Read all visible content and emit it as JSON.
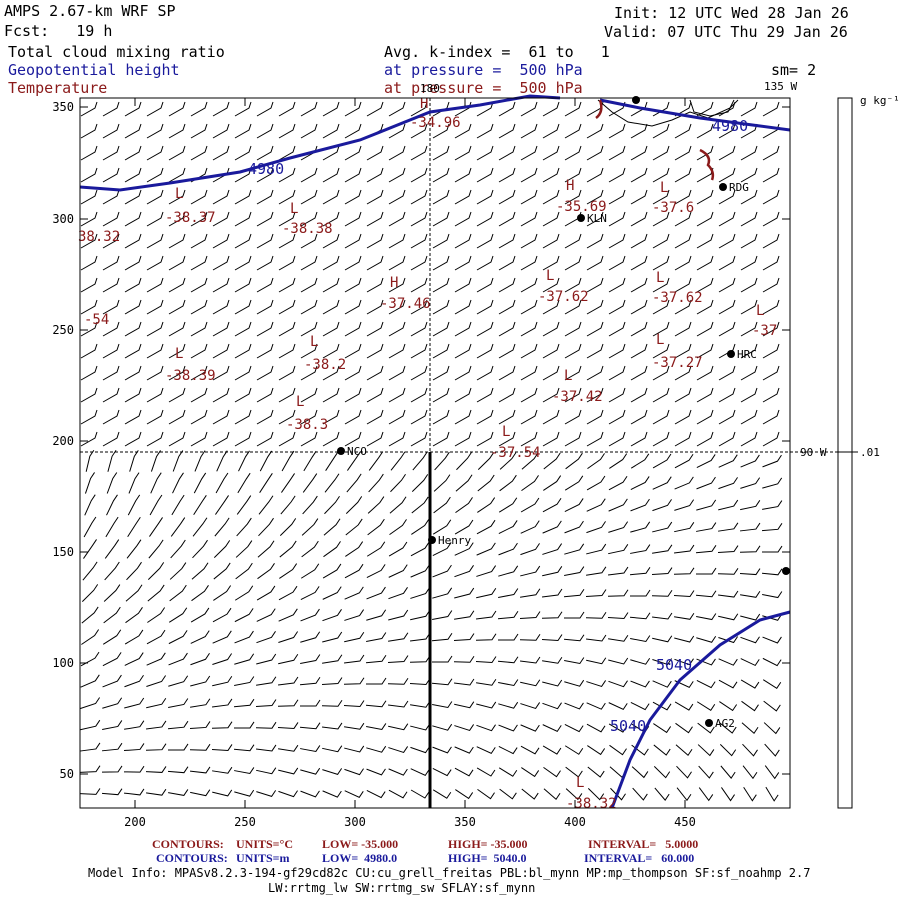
{
  "header": {
    "model": "AMPS 2.67-km WRF SP",
    "fcst": "Fcst:   19 h",
    "init": "Init: 12 UTC Wed 28 Jan 26",
    "valid": "Valid: 07 UTC Thu 29 Jan 26",
    "field1": "Total cloud mixing ratio",
    "field2": "Geopotential height",
    "field3": "Temperature",
    "avg": "Avg. k-index =  61 to   1",
    "pres_blue": "at pressure =  500 hPa",
    "pres_red": "at pressure =  500 hPa",
    "sm": "sm= 2"
  },
  "map": {
    "x_ticks": [
      "200",
      "250",
      "300",
      "350",
      "400",
      "450"
    ],
    "y_ticks": [
      "350",
      "300",
      "250",
      "200",
      "150",
      "100",
      "50"
    ],
    "lon_180": "180",
    "lon_135": "135 W",
    "lon_90": "90 W",
    "contour_labels": [
      "4980",
      "4980",
      "5040",
      "5040"
    ],
    "temp_centers": [
      {
        "t": "H",
        "v": "-34.96"
      },
      {
        "t": "L",
        "v": "-38.37"
      },
      {
        "t": "L",
        "v": "-38.38"
      },
      {
        "t": "",
        "v": "38.32"
      },
      {
        "t": "H",
        "v": "-35.69"
      },
      {
        "t": "L",
        "v": "-37.6"
      },
      {
        "t": "H",
        "v": "-37.46"
      },
      {
        "t": "L",
        "v": "-37.62"
      },
      {
        "t": "L",
        "v": "-37.62"
      },
      {
        "t": "",
        "v": "-54"
      },
      {
        "t": "L",
        "v": "-37"
      },
      {
        "t": "L",
        "v": "-38.39"
      },
      {
        "t": "L",
        "v": "-38.2"
      },
      {
        "t": "L",
        "v": "-37.27"
      },
      {
        "t": "L",
        "v": "-37.42"
      },
      {
        "t": "L",
        "v": "-38.3"
      },
      {
        "t": "L",
        "v": "-37.54"
      },
      {
        "t": "L",
        "v": "-38.32"
      }
    ],
    "stations": [
      "RDG",
      "KLN",
      "HRC",
      "NCO",
      "Henry",
      "AG2"
    ]
  },
  "colorbar": {
    "unit": "g kg⁻¹",
    "tick": ".01"
  },
  "footer": {
    "c1_label": "CONTOURS:",
    "c1_units": "UNITS=°C",
    "c1_low": "LOW= -35.000",
    "c1_high": "HIGH= -35.000",
    "c1_int": "INTERVAL=   5.0000",
    "c2_label": "CONTOURS:",
    "c2_units": "UNITS=m",
    "c2_low": "LOW=  4980.0",
    "c2_high": "HIGH=  5040.0",
    "c2_int": "INTERVAL=   60.000",
    "model_info": "Model Info: MPASv8.2.3-194-gf29cd82c CU:cu_grell_freitas PBL:bl_mynn MP:mp_thompson SF:sf_noahmp 2.7",
    "model_info2": "LW:rrtmg_lw SW:rrtmg_sw SFLAY:sf_mynn"
  },
  "colors": {
    "blue": "#1a1a9c",
    "red": "#8b1a1a",
    "black": "#000000"
  }
}
